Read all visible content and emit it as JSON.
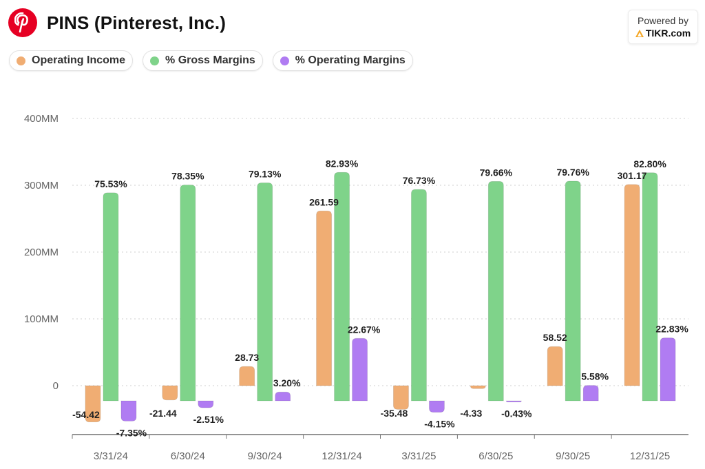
{
  "header": {
    "title": "PINS (Pinterest, Inc.)",
    "logo_icon": "pinterest-logo-icon"
  },
  "powered_by": {
    "label": "Powered by",
    "brand": "TIKR.com",
    "brand_icon": "tikr-triangle-icon"
  },
  "colors": {
    "operating_income": "#f0ad73",
    "gross_margins": "#7fd38a",
    "operating_margins": "#b07cf2"
  },
  "chart_data": {
    "type": "bar",
    "categories": [
      "3/31/24",
      "6/30/24",
      "9/30/24",
      "12/31/24",
      "3/31/25",
      "6/30/25",
      "9/30/25",
      "12/31/25"
    ],
    "y_ticks": [
      "400MM",
      "300MM",
      "200MM",
      "100MM",
      "0"
    ],
    "ylim": [
      -80,
      400
    ],
    "grid": true,
    "legend_placement": "top-left",
    "series": [
      {
        "name": "Operating Income",
        "axis": "left",
        "values": [
          -54.42,
          -21.44,
          28.73,
          261.59,
          -35.48,
          -4.33,
          58.52,
          301.17
        ],
        "labels": [
          "-54.42",
          "-21.44",
          "28.73",
          "261.59",
          "-35.48",
          "-4.33",
          "58.52",
          "301.17"
        ]
      },
      {
        "name": "% Gross Margins",
        "axis": "right",
        "values": [
          75.53,
          78.35,
          79.13,
          82.93,
          76.73,
          79.66,
          79.76,
          82.8
        ],
        "labels": [
          "75.53%",
          "78.35%",
          "79.13%",
          "82.93%",
          "76.73%",
          "79.66%",
          "79.76%",
          "82.80%"
        ]
      },
      {
        "name": "% Operating Margins",
        "axis": "right",
        "values": [
          -7.35,
          -2.51,
          3.2,
          22.67,
          -4.15,
          -0.43,
          5.58,
          22.83
        ],
        "labels": [
          "-7.35%",
          "-2.51%",
          "3.20%",
          "22.67%",
          "-4.15%",
          "-0.43%",
          "5.58%",
          "22.83%"
        ]
      }
    ]
  }
}
